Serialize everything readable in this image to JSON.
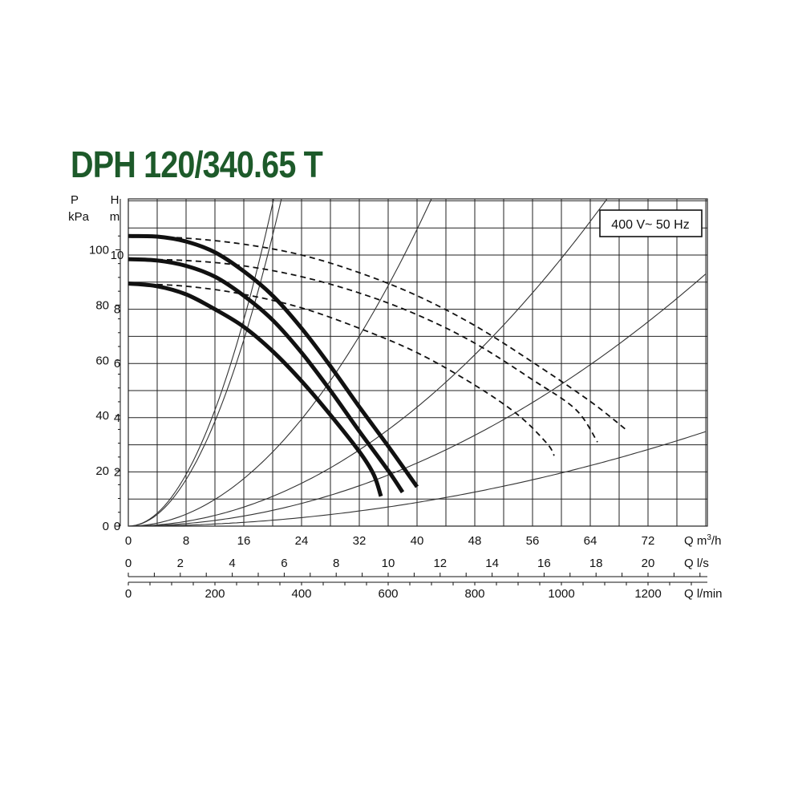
{
  "chart_data": {
    "type": "line",
    "title": "DPH 120/340.65 T",
    "annotation": "400 V~ 50 Hz",
    "grid": true,
    "xlim": [
      0,
      80
    ],
    "ylim": [
      0,
      12
    ],
    "y_left_label": [
      "P",
      "kPa"
    ],
    "y_right_label": [
      "H",
      "m"
    ],
    "y_left_ticks": [
      "0",
      "20",
      "40",
      "60",
      "80",
      "100"
    ],
    "y_right_ticks": [
      "0",
      "2",
      "4",
      "6",
      "8",
      "10"
    ],
    "x_axes": [
      {
        "label": "Q m³/h",
        "label_main": "Q m",
        "label_sup": "3",
        "label_tail": "/h",
        "ticks": [
          "0",
          "8",
          "16",
          "24",
          "32",
          "40",
          "48",
          "56",
          "64",
          "72"
        ],
        "tick_values": [
          0,
          8,
          16,
          24,
          32,
          40,
          48,
          56,
          64,
          72
        ]
      },
      {
        "label": "Q l/s",
        "ticks": [
          "0",
          "2",
          "4",
          "6",
          "8",
          "10",
          "12",
          "14",
          "16",
          "18",
          "20"
        ],
        "tick_values": [
          0,
          7.2,
          14.4,
          21.6,
          28.8,
          36,
          43.2,
          50.4,
          57.6,
          64.8,
          72
        ]
      },
      {
        "label": "Q l/min",
        "ticks": [
          "0",
          "200",
          "400",
          "600",
          "800",
          "1000",
          "1200"
        ],
        "tick_values": [
          0,
          12,
          24,
          36,
          48,
          60,
          72
        ]
      }
    ],
    "series": [
      {
        "style": "solid",
        "points": [
          [
            0,
            10.7
          ],
          [
            4,
            10.68
          ],
          [
            8,
            10.5
          ],
          [
            12,
            10.1
          ],
          [
            16,
            9.4
          ],
          [
            20,
            8.5
          ],
          [
            24,
            7.3
          ],
          [
            28,
            5.9
          ],
          [
            32,
            4.4
          ],
          [
            36,
            2.95
          ],
          [
            40,
            1.45
          ]
        ]
      },
      {
        "style": "solid",
        "points": [
          [
            0,
            9.85
          ],
          [
            4,
            9.8
          ],
          [
            8,
            9.6
          ],
          [
            12,
            9.2
          ],
          [
            16,
            8.5
          ],
          [
            20,
            7.6
          ],
          [
            24,
            6.4
          ],
          [
            28,
            5.0
          ],
          [
            32,
            3.5
          ],
          [
            36,
            2.05
          ],
          [
            38,
            1.25
          ]
        ]
      },
      {
        "style": "solid",
        "points": [
          [
            0,
            8.95
          ],
          [
            4,
            8.85
          ],
          [
            8,
            8.55
          ],
          [
            12,
            8.0
          ],
          [
            16,
            7.35
          ],
          [
            20,
            6.45
          ],
          [
            24,
            5.35
          ],
          [
            28,
            4.1
          ],
          [
            32,
            2.75
          ],
          [
            34,
            1.9
          ],
          [
            35,
            1.1
          ]
        ]
      },
      {
        "style": "dashed",
        "points": [
          [
            0,
            10.7
          ],
          [
            8,
            10.62
          ],
          [
            16,
            10.4
          ],
          [
            24,
            10.0
          ],
          [
            32,
            9.35
          ],
          [
            40,
            8.5
          ],
          [
            48,
            7.4
          ],
          [
            56,
            6.05
          ],
          [
            64,
            4.6
          ],
          [
            69,
            3.55
          ]
        ]
      },
      {
        "style": "dashed",
        "points": [
          [
            0,
            9.85
          ],
          [
            8,
            9.8
          ],
          [
            16,
            9.6
          ],
          [
            24,
            9.2
          ],
          [
            32,
            8.6
          ],
          [
            40,
            7.8
          ],
          [
            48,
            6.75
          ],
          [
            56,
            5.4
          ],
          [
            62,
            4.3
          ],
          [
            65,
            3.1
          ]
        ]
      },
      {
        "style": "dashed",
        "points": [
          [
            0,
            8.95
          ],
          [
            8,
            8.85
          ],
          [
            16,
            8.55
          ],
          [
            24,
            8.05
          ],
          [
            32,
            7.3
          ],
          [
            40,
            6.4
          ],
          [
            48,
            5.2
          ],
          [
            54,
            4.1
          ],
          [
            58,
            3.05
          ],
          [
            59,
            2.6
          ]
        ]
      }
    ],
    "system_curves": [
      {
        "k": 0.02975
      },
      {
        "k": 0.02683
      },
      {
        "k": 0.006844
      },
      {
        "k": 0.002744
      },
      {
        "k": 0.001454
      },
      {
        "k": 0.000545
      }
    ]
  }
}
